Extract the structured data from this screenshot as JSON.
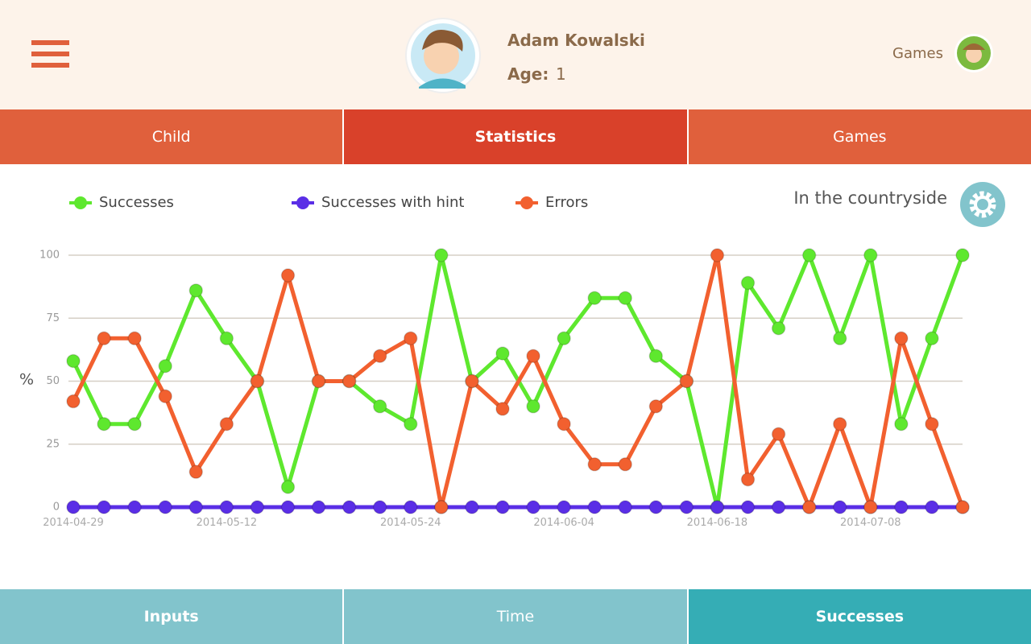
{
  "header": {
    "name": "Adam Kowalski",
    "age_label": "Age:",
    "age": "1",
    "games_link": "Games"
  },
  "tabs": [
    "Child",
    "Statistics",
    "Games"
  ],
  "bottom_tabs": [
    "Inputs",
    "Time",
    "Successes"
  ],
  "chart_data": {
    "type": "line",
    "title": "In the countryside",
    "y_label": "%",
    "categories": [
      "2014-04-29",
      null,
      null,
      null,
      null,
      "2014-05-12",
      null,
      null,
      null,
      null,
      null,
      "2014-05-24",
      null,
      null,
      null,
      null,
      "2014-06-04",
      null,
      null,
      null,
      null,
      "2014-06-18",
      null,
      null,
      null,
      null,
      "2014-07-08",
      null,
      null,
      null
    ],
    "series": [
      {
        "name": "Successes",
        "color": "#5ee82e",
        "values": [
          58,
          33,
          33,
          56,
          86,
          67,
          50,
          8,
          50,
          50,
          40,
          33,
          100,
          50,
          61,
          40,
          67,
          83,
          83,
          60,
          50,
          0,
          89,
          71,
          100,
          67,
          100,
          33,
          67,
          100
        ]
      },
      {
        "name": "Successes with hint",
        "color": "#5a2ee6",
        "values": [
          0,
          0,
          0,
          0,
          0,
          0,
          0,
          0,
          0,
          0,
          0,
          0,
          0,
          0,
          0,
          0,
          0,
          0,
          0,
          0,
          0,
          0,
          0,
          0,
          0,
          0,
          0,
          0,
          0,
          0
        ]
      },
      {
        "name": "Errors",
        "color": "#f2602f",
        "values": [
          42,
          67,
          67,
          44,
          14,
          33,
          50,
          92,
          50,
          50,
          60,
          67,
          0,
          50,
          39,
          60,
          33,
          17,
          17,
          40,
          50,
          100,
          11,
          29,
          0,
          33,
          0,
          67,
          33,
          0
        ]
      }
    ],
    "ylim": [
      0,
      100
    ],
    "yticks": [
      0,
      25,
      50,
      75,
      100
    ],
    "grid": true
  }
}
